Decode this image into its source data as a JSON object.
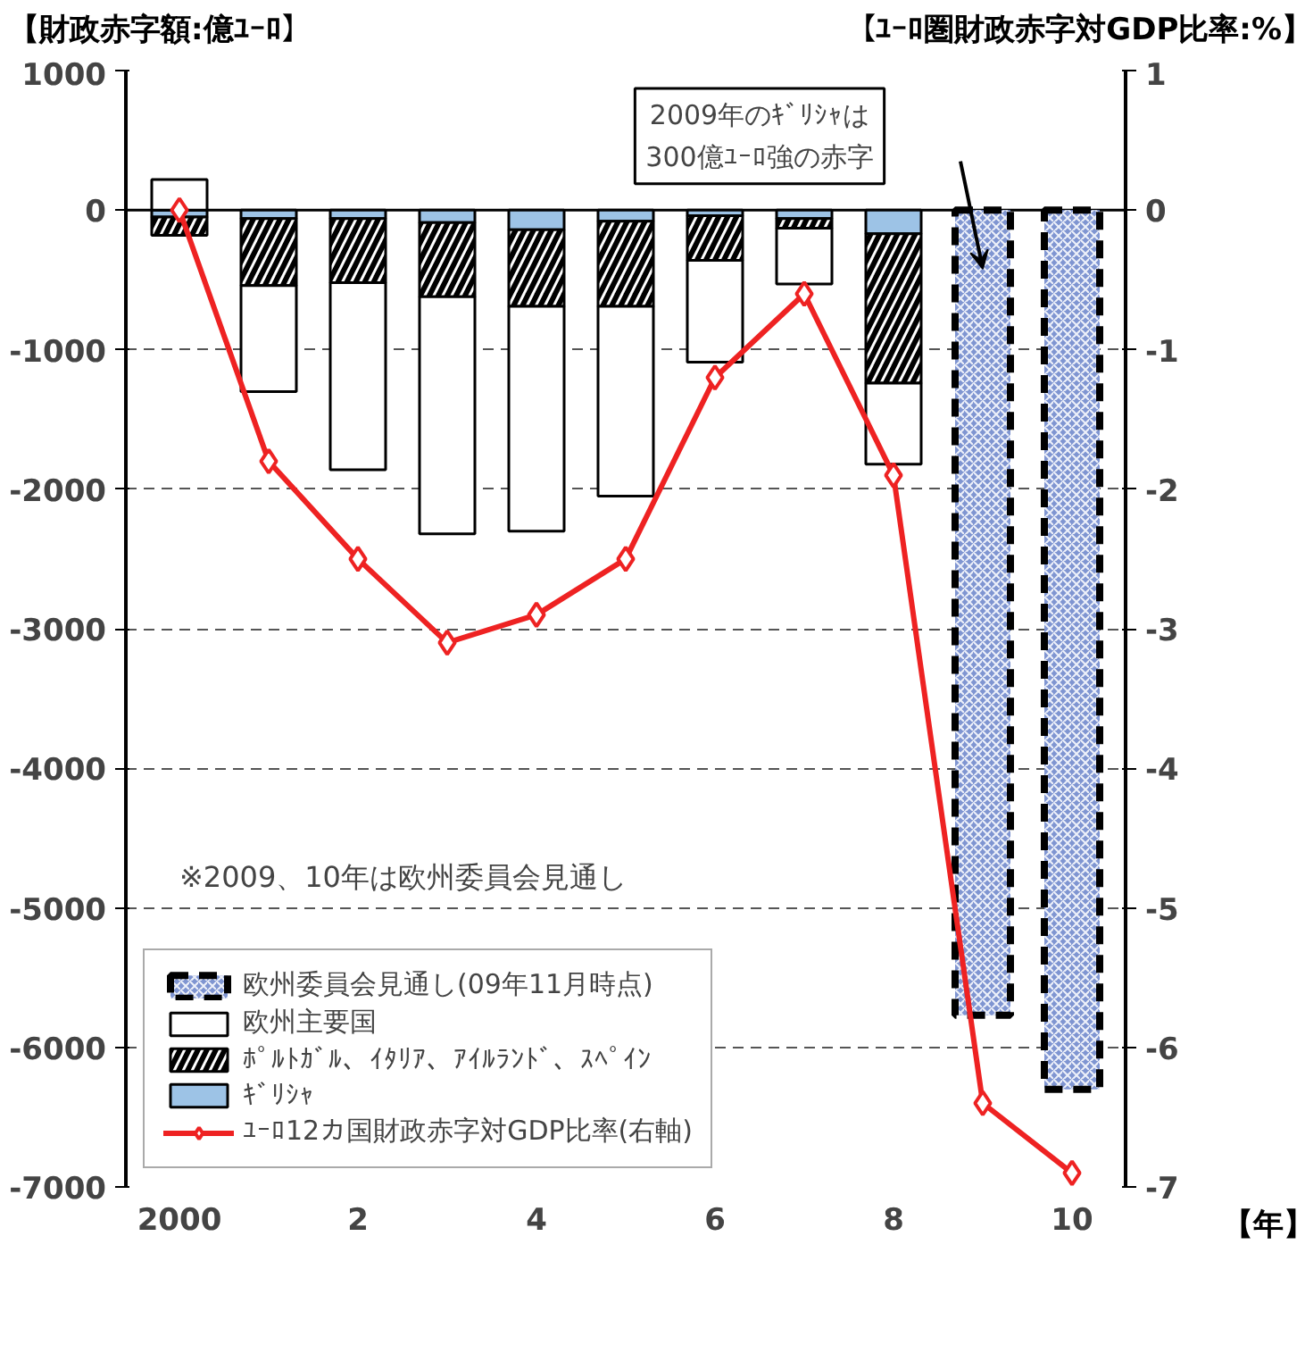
{
  "chart_data": {
    "type": "bar",
    "stacked": true,
    "ylabel": "【財政赤字額:億ﾕｰﾛ】",
    "y2label": "【ﾕｰﾛ圏財政赤字対GDP比率:%】",
    "xlabel": "【年】",
    "categories": [
      "2000",
      null,
      "2",
      null,
      "4",
      null,
      "6",
      null,
      "8",
      null,
      "10"
    ],
    "series": [
      {
        "name": "ｷﾞﾘｼｬ",
        "color": "#9dc3e6",
        "values": [
          -50,
          -60,
          -60,
          -90,
          -140,
          -80,
          -40,
          -60,
          -170,
          null,
          null
        ]
      },
      {
        "name": "ﾎﾟﾙﾄｶﾞﾙ、ｲﾀﾘｱ、ｱｲﾙﾗﾝﾄﾞ、ｽﾍﾟｲﾝ",
        "color": "#000000",
        "values": [
          -130,
          -480,
          -460,
          -530,
          -550,
          -610,
          -320,
          -70,
          -1070,
          null,
          null
        ]
      },
      {
        "name": "欧州主要国",
        "color": "#ffffff",
        "values": [
          220,
          -760,
          -1340,
          -1700,
          -1610,
          -1360,
          -730,
          -400,
          -580,
          null,
          null
        ]
      },
      {
        "name": "欧州委員会見通し(09年11月時点)",
        "color": "#7f95d1",
        "line_style": "dashed",
        "values": [
          null,
          null,
          null,
          null,
          null,
          null,
          null,
          null,
          null,
          -5770,
          -6300
        ]
      },
      {
        "name": "ﾕｰﾛ12カ国財政赤字対GDP比率(右軸)",
        "type": "line",
        "axis": "y2",
        "color": "#ee2222",
        "marker": "diamond",
        "values": [
          0.0,
          -1.8,
          -2.5,
          -3.1,
          -2.9,
          -2.5,
          -1.2,
          -0.6,
          -1.9,
          -6.4,
          -6.9
        ]
      }
    ],
    "ylim": [
      -7000,
      1000
    ],
    "yticks": [
      1000,
      0,
      -1000,
      -2000,
      -3000,
      -4000,
      -5000,
      -6000,
      -7000
    ],
    "y2lim": [
      -7,
      1
    ],
    "y2ticks": [
      1,
      0,
      -1,
      -2,
      -3,
      -4,
      -5,
      -6,
      -7
    ],
    "grid": "y",
    "legend": "bottom left",
    "annotations": [
      "2009年のｷﾞﾘｼｬは\n300億ﾕｰﾛ強の赤字",
      "※2009、10年は欧州委員会見通し"
    ]
  }
}
